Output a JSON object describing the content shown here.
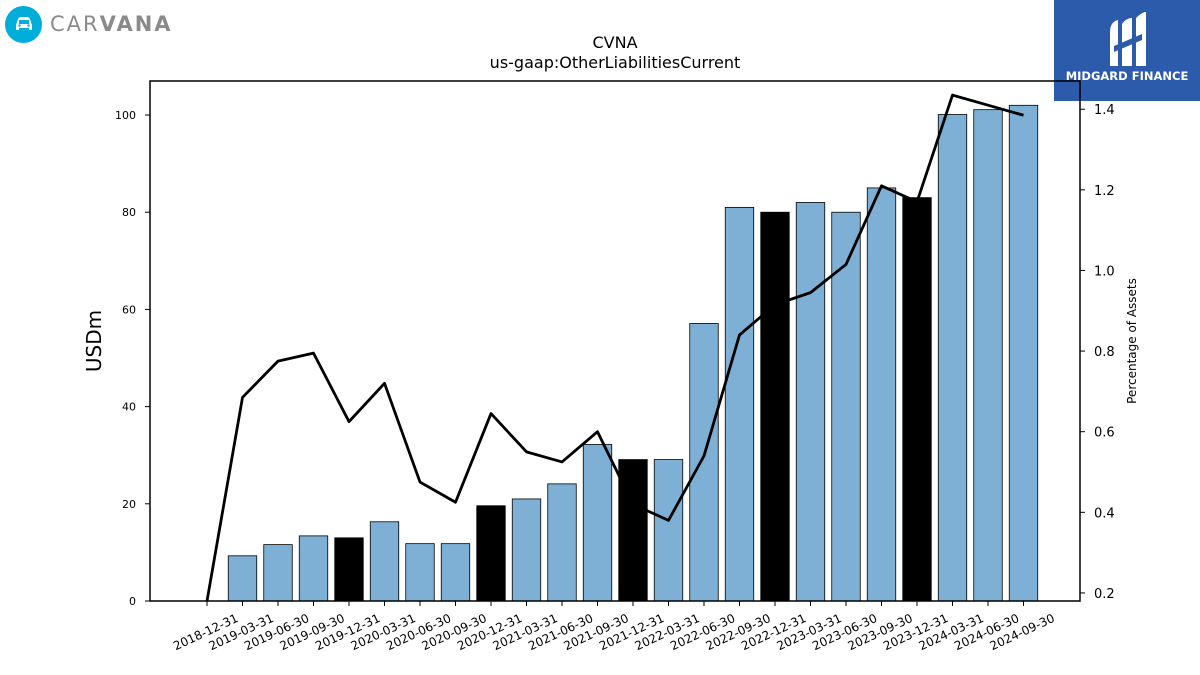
{
  "branding": {
    "left_logo_text_light": "CAR",
    "left_logo_text_bold": "VANA",
    "right_logo_text": "MIDGARD FINANCE",
    "left_logo_color": "#00aed9",
    "right_logo_color": "#2d5bab"
  },
  "chart_data": {
    "type": "bar",
    "title": "CVNA",
    "subtitle": "us-gaap:OtherLiabilitiesCurrent",
    "ylabel": "USDm",
    "y2label": "Percentage of Assets",
    "ylim": [
      0,
      107
    ],
    "y2lim": [
      0.18,
      1.47
    ],
    "yticks": [
      0,
      20,
      40,
      60,
      80,
      100
    ],
    "y2ticks": [
      0.2,
      0.4,
      0.6,
      0.8,
      1.0,
      1.2,
      1.4
    ],
    "categories": [
      "2018-12-31",
      "2019-03-31",
      "2019-06-30",
      "2019-09-30",
      "2019-12-31",
      "2020-03-31",
      "2020-06-30",
      "2020-09-30",
      "2020-12-31",
      "2021-03-31",
      "2021-06-30",
      "2021-09-30",
      "2021-12-31",
      "2022-03-31",
      "2022-06-30",
      "2022-09-30",
      "2022-12-31",
      "2023-03-31",
      "2023-06-30",
      "2023-09-30",
      "2023-12-31",
      "2024-03-31",
      "2024-06-30",
      "2024-09-30"
    ],
    "series": [
      {
        "kind": "bar",
        "values": [
          0,
          9.3,
          11.6,
          13.4,
          13.0,
          16.3,
          11.8,
          11.8,
          19.6,
          21.0,
          24.1,
          32.2,
          29.1,
          29.1,
          57.1,
          81.0,
          80.0,
          82.0,
          80.0,
          85.0,
          83.0,
          100.1,
          101.1,
          102.0
        ],
        "highlight": [
          false,
          false,
          false,
          false,
          true,
          false,
          false,
          false,
          true,
          false,
          false,
          false,
          true,
          false,
          false,
          false,
          true,
          false,
          false,
          false,
          true,
          false,
          false,
          false
        ]
      },
      {
        "kind": "line",
        "values": [
          0.18,
          0.685,
          0.775,
          0.795,
          0.625,
          0.72,
          0.475,
          0.425,
          0.645,
          0.55,
          0.525,
          0.6,
          0.42,
          0.38,
          0.54,
          0.84,
          0.915,
          0.945,
          1.015,
          1.21,
          1.17,
          1.435,
          1.41,
          1.385
        ]
      }
    ],
    "colors": {
      "bar": "#7eb0d5",
      "bar_highlight": "#000000",
      "bar_edge": "#000000",
      "line": "#000000"
    },
    "grid": false
  }
}
